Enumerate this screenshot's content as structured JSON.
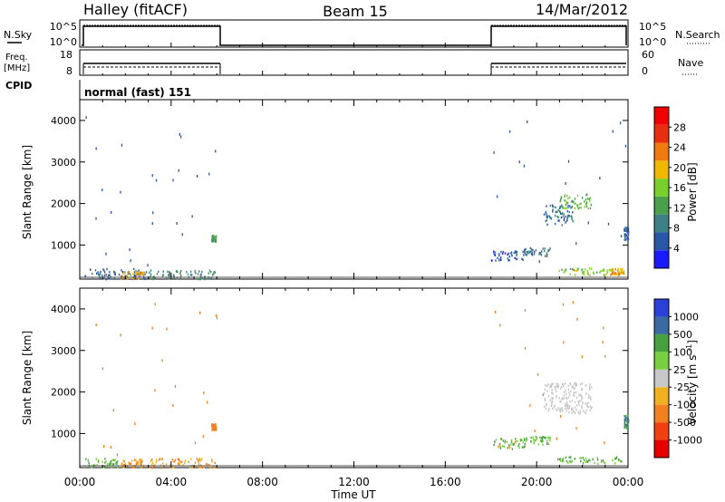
{
  "header": {
    "station": "Halley (fitACF)",
    "beam": "Beam 15",
    "date": "14/Mar/2012"
  },
  "panels": {
    "nsky": {
      "left_label": "N.Sky",
      "left_ticks": [
        "10^5",
        "10^0"
      ],
      "right_label": "N.Search",
      "right_ticks": [
        "10^5",
        "10^0"
      ]
    },
    "freq": {
      "left_label_top": "Freq.",
      "left_label_bottom": "[MHz]",
      "left_ticks": [
        "18",
        "8"
      ],
      "right_label": "Nave",
      "right_ticks": [
        "60",
        "0"
      ]
    },
    "cpid": {
      "label": "CPID",
      "text": "normal (fast) 151"
    }
  },
  "colors": {
    "power_scale": [
      "#1a1aff",
      "#2a56a8",
      "#3f7f86",
      "#4aa04a",
      "#7ad02a",
      "#f0b800",
      "#f07a10",
      "#e83010",
      "#f00000"
    ],
    "velocity_scale": [
      "#e80000",
      "#f04010",
      "#f08020",
      "#f0b020",
      "#c8c8c8",
      "#78d040",
      "#48a040",
      "#3a6aa0",
      "#2a40d8"
    ]
  },
  "chart_data": [
    {
      "type": "heatmap",
      "name": "power",
      "ylabel": "Slant Range [km]",
      "y_ticks": [
        "1000",
        "2000",
        "3000",
        "4000"
      ],
      "ylim": [
        180,
        4500
      ],
      "x_ticks": [
        "00:00",
        "04:00",
        "08:00",
        "12:00",
        "16:00",
        "20:00",
        "00:00"
      ],
      "xlim_hours": [
        0,
        24
      ],
      "colorbar_label": "Power [dB]",
      "colorbar_ticks": [
        "4",
        "8",
        "12",
        "16",
        "20",
        "24",
        "28"
      ],
      "colorbar_range": [
        0,
        32
      ],
      "clusters": [
        {
          "t0": 0.2,
          "t1": 2.9,
          "r0": 200,
          "r1": 450,
          "value": 6
        },
        {
          "t0": 1.8,
          "t1": 2.8,
          "r0": 220,
          "r1": 400,
          "value": 20
        },
        {
          "t0": 3.0,
          "t1": 5.9,
          "r0": 200,
          "r1": 420,
          "value": 10
        },
        {
          "t0": 5.75,
          "t1": 5.95,
          "r0": 1100,
          "r1": 1250,
          "value": 12
        },
        {
          "t0": 18.0,
          "t1": 19.5,
          "r0": 650,
          "r1": 900,
          "value": 6
        },
        {
          "t0": 19.4,
          "t1": 20.6,
          "r0": 750,
          "r1": 950,
          "value": 8
        },
        {
          "t0": 20.3,
          "t1": 21.6,
          "r0": 1500,
          "r1": 2000,
          "value": 8
        },
        {
          "t0": 21.0,
          "t1": 22.4,
          "r0": 1900,
          "r1": 2250,
          "value": 14
        },
        {
          "t0": 20.9,
          "t1": 23.8,
          "r0": 300,
          "r1": 460,
          "value": 16
        },
        {
          "t0": 23.2,
          "t1": 23.8,
          "r0": 300,
          "r1": 460,
          "value": 22
        },
        {
          "t0": 23.8,
          "t1": 24.0,
          "r0": 1150,
          "r1": 1450,
          "value": 6
        }
      ]
    },
    {
      "type": "heatmap",
      "name": "velocity",
      "ylabel": "Slant Range [km]",
      "y_ticks": [
        "1000",
        "2000",
        "3000",
        "4000"
      ],
      "ylim": [
        180,
        4500
      ],
      "x_ticks": [
        "00:00",
        "04:00",
        "08:00",
        "12:00",
        "16:00",
        "20:00",
        "00:00"
      ],
      "xlim_hours": [
        0,
        24
      ],
      "xlabel": "Time UT",
      "colorbar_label": "Velocity [m s^-1]",
      "colorbar_ticks": [
        "-1000",
        "-500",
        "-100",
        "-25",
        "25",
        "100",
        "500",
        "1000"
      ],
      "clusters": [
        {
          "t0": 1.8,
          "t1": 2.8,
          "r0": 200,
          "r1": 400,
          "value": -100
        },
        {
          "t0": 0.2,
          "t1": 1.8,
          "r0": 200,
          "r1": 420,
          "value": 100
        },
        {
          "t0": 3.0,
          "t1": 5.9,
          "r0": 200,
          "r1": 420,
          "value": -100
        },
        {
          "t0": 5.75,
          "t1": 5.95,
          "r0": 1100,
          "r1": 1250,
          "value": -300
        },
        {
          "t0": 18.0,
          "t1": 19.5,
          "r0": 650,
          "r1": 900,
          "value": 100
        },
        {
          "t0": 19.4,
          "t1": 20.6,
          "r0": 750,
          "r1": 950,
          "value": 100
        },
        {
          "t0": 20.3,
          "t1": 22.4,
          "r0": 1500,
          "r1": 2250,
          "value": 0
        },
        {
          "t0": 20.9,
          "t1": 23.8,
          "r0": 300,
          "r1": 460,
          "value": 100
        },
        {
          "t0": 23.8,
          "t1": 24.0,
          "r0": 1150,
          "r1": 1450,
          "value": 500
        }
      ]
    }
  ]
}
